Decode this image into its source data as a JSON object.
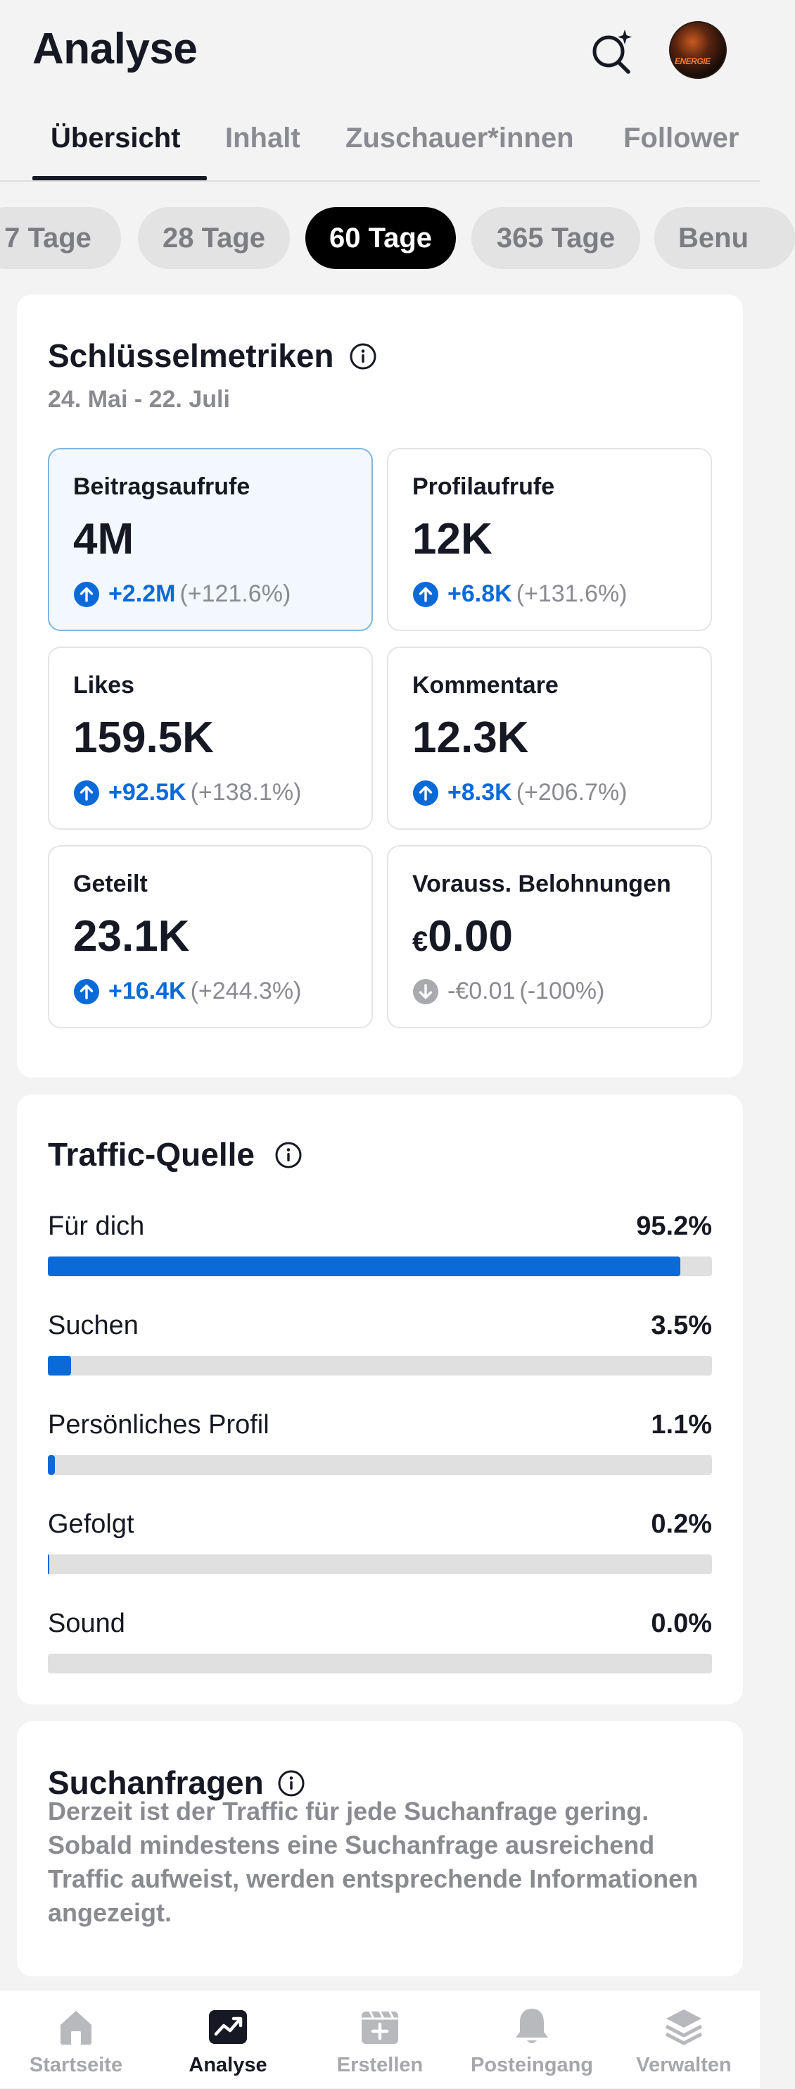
{
  "header": {
    "title": "Analyse",
    "search_icon": "search-sparkle-icon",
    "avatar_alt": "profile-avatar"
  },
  "tabs": [
    {
      "label": "Übersicht",
      "active": true
    },
    {
      "label": "Inhalt",
      "active": false
    },
    {
      "label": "Zuschauer*innen",
      "active": false
    },
    {
      "label": "Follower",
      "active": false
    }
  ],
  "periods": [
    {
      "label": "7 Tage",
      "active": false
    },
    {
      "label": "28 Tage",
      "active": false
    },
    {
      "label": "60 Tage",
      "active": true
    },
    {
      "label": "365 Tage",
      "active": false
    },
    {
      "label": "Benu",
      "active": false
    }
  ],
  "key_metrics": {
    "title": "Schlüsselmetriken",
    "date_range": "24. Mai - 22. Juli",
    "items": [
      {
        "label": "Beitragsaufrufe",
        "value": "4M",
        "delta": "+2.2M",
        "pct": "(+121.6%)",
        "direction": "up"
      },
      {
        "label": "Profilaufrufe",
        "value": "12K",
        "delta": "+6.8K",
        "pct": "(+131.6%)",
        "direction": "up"
      },
      {
        "label": "Likes",
        "value": "159.5K",
        "delta": "+92.5K",
        "pct": "(+138.1%)",
        "direction": "up"
      },
      {
        "label": "Kommentare",
        "value": "12.3K",
        "delta": "+8.3K",
        "pct": "(+206.7%)",
        "direction": "up"
      },
      {
        "label": "Geteilt",
        "value": "23.1K",
        "delta": "+16.4K",
        "pct": "(+244.3%)",
        "direction": "up"
      },
      {
        "label": "Vorauss. Belohnungen",
        "currency": "€",
        "value": "0.00",
        "delta": "-€0.01",
        "pct": "(-100%)",
        "direction": "down"
      }
    ]
  },
  "traffic": {
    "title": "Traffic-Quelle",
    "sources": [
      {
        "label": "Für dich",
        "pct": "95.2%",
        "value": 95.2
      },
      {
        "label": "Suchen",
        "pct": "3.5%",
        "value": 3.5
      },
      {
        "label": "Persönliches Profil",
        "pct": "1.1%",
        "value": 1.1
      },
      {
        "label": "Gefolgt",
        "pct": "0.2%",
        "value": 0.2
      },
      {
        "label": "Sound",
        "pct": "0.0%",
        "value": 0.0
      }
    ]
  },
  "search_queries": {
    "title": "Suchanfragen",
    "text": "Derzeit ist der Traffic für jede Suchanfrage gering. Sobald mindestens eine Suchanfrage ausreichend Traffic aufweist, werden entsprechende Informationen angezeigt."
  },
  "bottom_nav": [
    {
      "label": "Startseite",
      "icon": "home-icon",
      "active": false
    },
    {
      "label": "Analyse",
      "icon": "analytics-icon",
      "active": true
    },
    {
      "label": "Erstellen",
      "icon": "create-icon",
      "active": false
    },
    {
      "label": "Posteingang",
      "icon": "bell-icon",
      "active": false
    },
    {
      "label": "Verwalten",
      "icon": "layers-icon",
      "active": false
    }
  ],
  "colors": {
    "accent": "#0a6ad8",
    "text": "#161823",
    "muted": "#8a8b91",
    "background": "#f3f3f3"
  }
}
